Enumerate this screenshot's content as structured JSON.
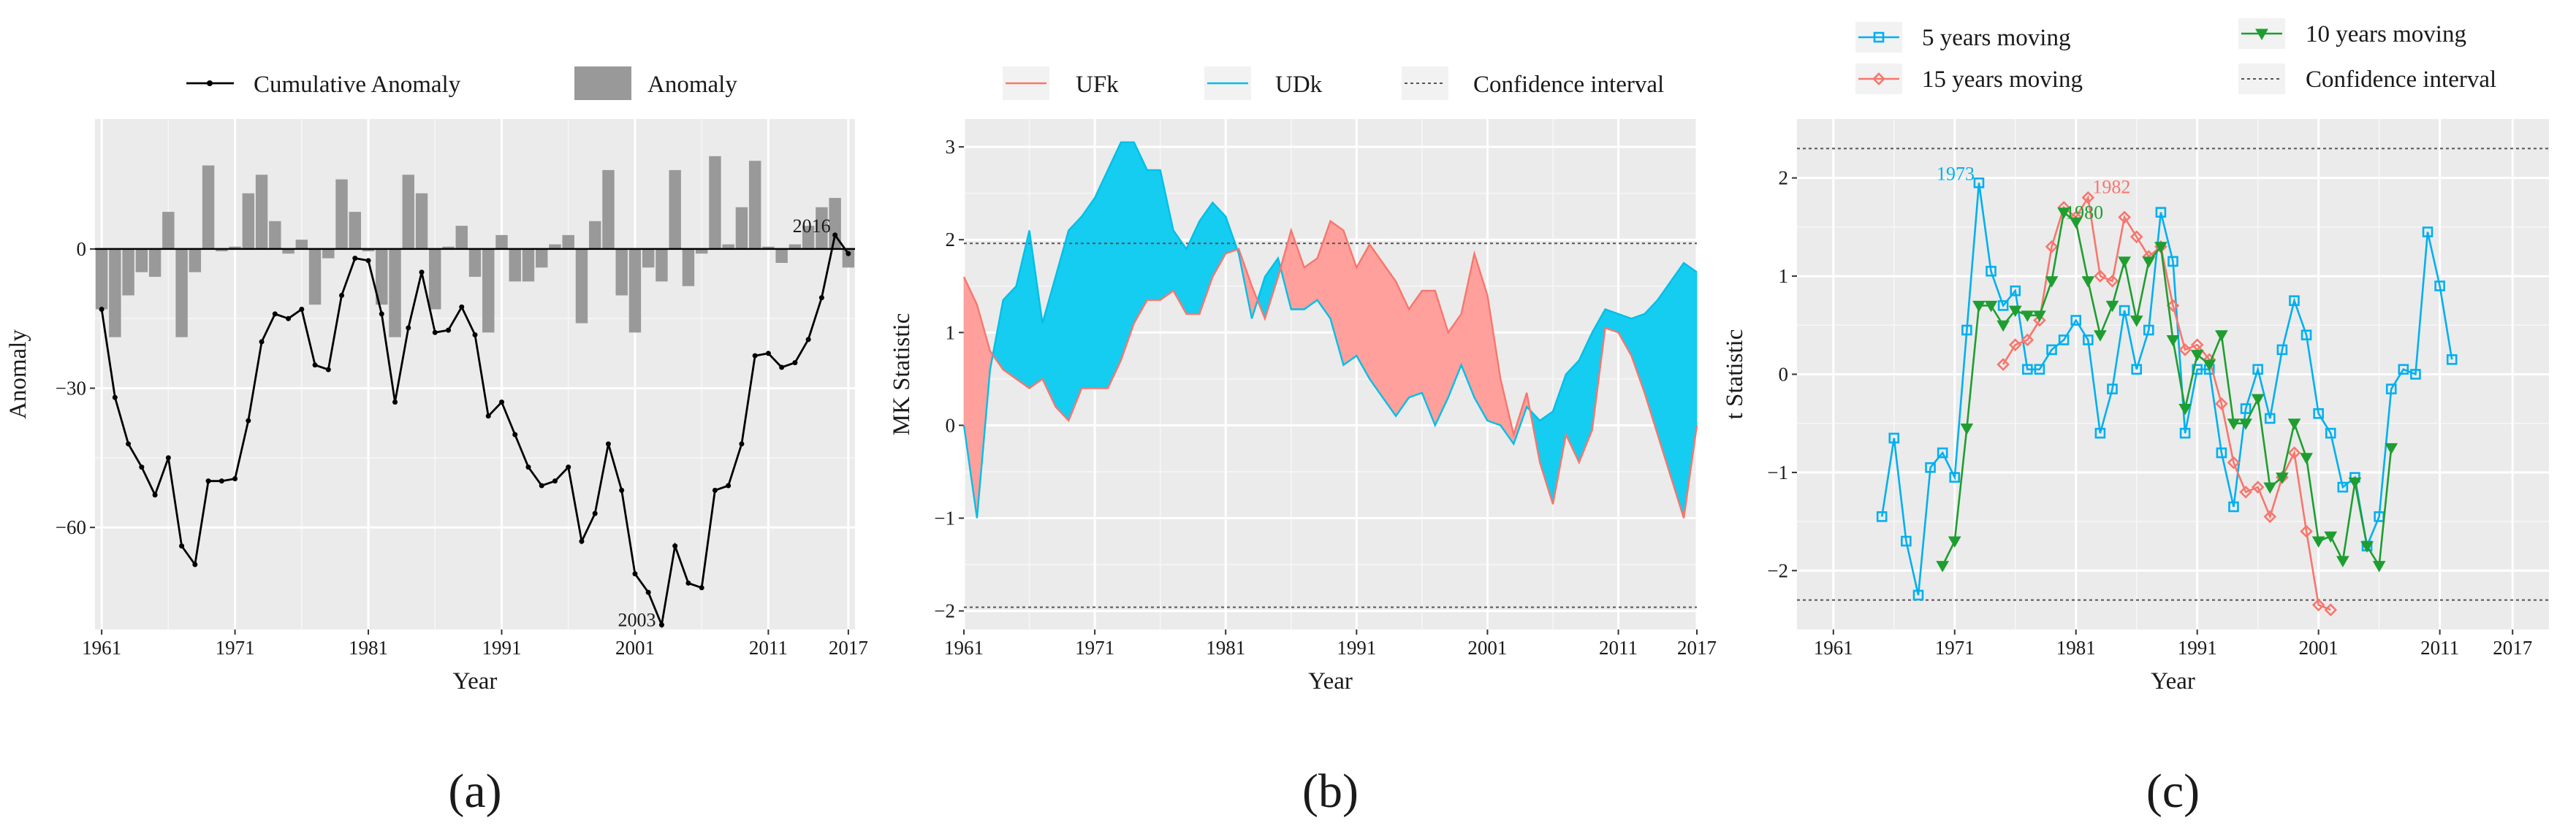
{
  "chart_data": [
    {
      "panel": "a",
      "panel_label": "(a)",
      "type": "bar",
      "xlabel": "Year",
      "ylabel": "Anomaly",
      "xlim": [
        1960.5,
        2017.5
      ],
      "ylim": [
        -82,
        28
      ],
      "x_ticks": [
        1961,
        1971,
        1981,
        1991,
        2001,
        2011,
        2017
      ],
      "x_tick_labels": [
        "1961",
        "1971",
        "1981",
        "1991",
        "2001",
        "2011",
        "2017"
      ],
      "y_ticks": [
        0,
        -30,
        -60
      ],
      "y_tick_labels": [
        "0",
        "−30",
        "−60"
      ],
      "legend": {
        "position": "top",
        "entries": [
          "Cumulative Anomaly",
          "Anomaly"
        ]
      },
      "colors": {
        "bar": "#999999",
        "line": "#000000"
      },
      "x": [
        1961,
        1962,
        1963,
        1964,
        1965,
        1966,
        1967,
        1968,
        1969,
        1970,
        1971,
        1972,
        1973,
        1974,
        1975,
        1976,
        1977,
        1978,
        1979,
        1980,
        1981,
        1982,
        1983,
        1984,
        1985,
        1986,
        1987,
        1988,
        1989,
        1990,
        1991,
        1992,
        1993,
        1994,
        1995,
        1996,
        1997,
        1998,
        1999,
        2000,
        2001,
        2002,
        2003,
        2004,
        2005,
        2006,
        2007,
        2008,
        2009,
        2010,
        2011,
        2012,
        2013,
        2014,
        2015,
        2016,
        2017
      ],
      "series": [
        {
          "name": "Anomaly",
          "type": "bar",
          "values": [
            -13,
            -19,
            -10,
            -5,
            -6,
            8,
            -19,
            -5,
            18,
            -0.5,
            0.5,
            12,
            16,
            6,
            -1,
            2,
            -12,
            -2,
            15,
            8,
            -0.5,
            -12,
            -19,
            16,
            12,
            -13,
            0.5,
            5,
            -6,
            -18,
            3,
            -7,
            -7,
            -4,
            1,
            3,
            -16,
            6,
            17,
            -10,
            -18,
            -4,
            -7,
            17,
            -8,
            -1,
            20,
            1,
            9,
            19,
            0.5,
            -3,
            1,
            5,
            9,
            11,
            -4
          ]
        },
        {
          "name": "Cumulative Anomaly",
          "type": "line",
          "values": [
            -13,
            -32,
            -42,
            -47,
            -53,
            -45,
            -64,
            -68,
            -50,
            -50,
            -49.5,
            -37,
            -20,
            -14,
            -15,
            -13,
            -25,
            -26,
            -10,
            -2,
            -2.5,
            -14,
            -33,
            -17,
            -5,
            -18,
            -17.5,
            -12.5,
            -18.5,
            -36,
            -33,
            -40,
            -47,
            -51,
            -50,
            -47,
            -63,
            -57,
            -42,
            -52,
            -70,
            -74,
            -81,
            -64,
            -72,
            -73,
            -52,
            -51,
            -42,
            -23,
            -22.5,
            -25.5,
            -24.5,
            -19.5,
            -10.5,
            3,
            -1
          ]
        }
      ],
      "annotations": [
        {
          "text": "2016",
          "x": 2016,
          "y": 3
        },
        {
          "text": "2003",
          "x": 2003,
          "y": -81
        }
      ]
    },
    {
      "panel": "b",
      "panel_label": "(b)",
      "type": "area",
      "xlabel": "Year",
      "ylabel": "MK Statistic",
      "xlim": [
        1961,
        2017
      ],
      "ylim": [
        -2.2,
        3.3
      ],
      "x_ticks": [
        1961,
        1971,
        1981,
        1991,
        2001,
        2011,
        2017
      ],
      "x_tick_labels": [
        "1961",
        "1971",
        "1981",
        "1991",
        "2001",
        "2011",
        "2017"
      ],
      "y_ticks": [
        3,
        2,
        1,
        0,
        -1,
        -2
      ],
      "y_tick_labels": [
        "3",
        "2",
        "1",
        "0",
        "−1",
        "−2"
      ],
      "confidence_interval": [
        1.96,
        -1.96
      ],
      "legend": {
        "position": "top",
        "entries": [
          "UFk",
          "UDk",
          "Confidence interval"
        ]
      },
      "colors": {
        "UFk": "#F8766D",
        "UDk": "#00BFE8",
        "fill_UFk": "#FFA09C",
        "fill_UDk": "#15CDF0"
      },
      "x": [
        1961,
        1962,
        1963,
        1964,
        1965,
        1966,
        1967,
        1968,
        1969,
        1970,
        1971,
        1972,
        1973,
        1974,
        1975,
        1976,
        1977,
        1978,
        1979,
        1980,
        1981,
        1982,
        1983,
        1984,
        1985,
        1986,
        1987,
        1988,
        1989,
        1990,
        1991,
        1992,
        1993,
        1994,
        1995,
        1996,
        1997,
        1998,
        1999,
        2000,
        2001,
        2002,
        2003,
        2004,
        2005,
        2006,
        2007,
        2008,
        2009,
        2010,
        2011,
        2012,
        2013,
        2014,
        2015,
        2016,
        2017
      ],
      "series": [
        {
          "name": "UFk",
          "values": [
            1.6,
            1.3,
            0.8,
            0.6,
            0.5,
            0.4,
            0.5,
            0.2,
            0.05,
            0.4,
            0.4,
            0.4,
            0.7,
            1.1,
            1.35,
            1.35,
            1.45,
            1.2,
            1.2,
            1.6,
            1.85,
            1.9,
            1.5,
            1.15,
            1.6,
            2.1,
            1.7,
            1.8,
            2.2,
            2.1,
            1.7,
            1.95,
            1.75,
            1.55,
            1.25,
            1.45,
            1.45,
            1.0,
            1.2,
            1.85,
            1.4,
            0.5,
            -0.1,
            0.35,
            -0.4,
            -0.85,
            -0.1,
            -0.4,
            -0.05,
            1.05,
            1.0,
            0.75,
            0.35,
            -0.1,
            -0.55,
            -1.0,
            0.0
          ]
        },
        {
          "name": "UDk",
          "values": [
            0.0,
            -1.0,
            0.6,
            1.35,
            1.5,
            2.1,
            1.1,
            1.6,
            2.1,
            2.25,
            2.45,
            2.75,
            3.05,
            3.05,
            2.75,
            2.75,
            2.1,
            1.9,
            2.2,
            2.4,
            2.25,
            1.85,
            1.15,
            1.6,
            1.8,
            1.25,
            1.25,
            1.35,
            1.15,
            0.65,
            0.75,
            0.5,
            0.3,
            0.1,
            0.3,
            0.35,
            0.0,
            0.3,
            0.65,
            0.3,
            0.05,
            0.0,
            -0.2,
            0.2,
            0.05,
            0.15,
            0.55,
            0.7,
            1.0,
            1.25,
            1.2,
            1.15,
            1.2,
            1.35,
            1.55,
            1.75,
            1.65
          ]
        }
      ]
    },
    {
      "panel": "c",
      "panel_label": "(c)",
      "type": "line",
      "xlabel": "Year",
      "ylabel": "t Statistic",
      "xlim": [
        1958,
        2020
      ],
      "ylim": [
        -2.6,
        2.6
      ],
      "x_ticks": [
        1961,
        1971,
        1981,
        1991,
        2001,
        2011,
        2017
      ],
      "x_tick_labels": [
        "1961",
        "1971",
        "1981",
        "1991",
        "2001",
        "2011",
        "2017"
      ],
      "y_ticks": [
        2,
        1,
        0,
        -1,
        -2
      ],
      "y_tick_labels": [
        "2",
        "1",
        "0",
        "−1",
        "−2"
      ],
      "confidence_interval": [
        2.3,
        -2.3
      ],
      "legend": {
        "position": "top",
        "entries": [
          "5 years moving",
          "10 years moving",
          "15 years moving",
          "Confidence interval"
        ]
      },
      "colors": {
        "5 years moving": "#00B0F0",
        "10 years moving": "#1E9E30",
        "15 years moving": "#F8766D"
      },
      "series": [
        {
          "name": "5 years moving",
          "marker": "square",
          "x": [
            1965,
            1966,
            1967,
            1968,
            1969,
            1970,
            1971,
            1972,
            1973,
            1974,
            1975,
            1976,
            1977,
            1978,
            1979,
            1980,
            1981,
            1982,
            1983,
            1984,
            1985,
            1986,
            1987,
            1988,
            1989,
            1990,
            1991,
            1992,
            1993,
            1994,
            1995,
            1996,
            1997,
            1998,
            1999,
            2000,
            2001,
            2002,
            2003,
            2004,
            2005,
            2006,
            2007,
            2008,
            2009,
            2010,
            2011,
            2012
          ],
          "values": [
            -1.45,
            -0.65,
            -1.7,
            -2.25,
            -0.95,
            -0.8,
            -1.05,
            0.45,
            1.95,
            1.05,
            0.7,
            0.85,
            0.05,
            0.05,
            0.25,
            0.35,
            0.55,
            0.35,
            -0.6,
            -0.15,
            0.65,
            0.05,
            0.45,
            1.65,
            1.15,
            -0.6,
            0.05,
            0.05,
            -0.8,
            -1.35,
            -0.35,
            0.05,
            -0.45,
            0.25,
            0.75,
            0.4,
            -0.4,
            -0.6,
            -1.15,
            -1.05,
            -1.75,
            -1.45,
            -0.15,
            0.05,
            0.0,
            1.45,
            0.9,
            0.15
          ]
        },
        {
          "name": "10 years moving",
          "marker": "triangle-down",
          "x": [
            1970,
            1971,
            1972,
            1973,
            1974,
            1975,
            1976,
            1977,
            1978,
            1979,
            1980,
            1981,
            1982,
            1983,
            1984,
            1985,
            1986,
            1987,
            1988,
            1989,
            1990,
            1991,
            1992,
            1993,
            1994,
            1995,
            1996,
            1997,
            1998,
            1999,
            2000,
            2001,
            2002,
            2003,
            2004,
            2005,
            2006,
            2007
          ],
          "values": [
            -1.95,
            -1.7,
            -0.55,
            0.7,
            0.7,
            0.5,
            0.65,
            0.6,
            0.6,
            0.95,
            1.65,
            1.55,
            0.95,
            0.4,
            0.7,
            1.15,
            0.55,
            1.15,
            1.3,
            0.35,
            -0.35,
            0.2,
            0.1,
            0.4,
            -0.5,
            -0.5,
            -0.25,
            -1.15,
            -1.05,
            -0.5,
            -0.85,
            -1.7,
            -1.65,
            -1.9,
            -1.1,
            -1.75,
            -1.95,
            -0.75
          ]
        },
        {
          "name": "15 years moving",
          "marker": "diamond",
          "x": [
            1975,
            1976,
            1977,
            1978,
            1979,
            1980,
            1981,
            1982,
            1983,
            1984,
            1985,
            1986,
            1987,
            1988,
            1989,
            1990,
            1991,
            1992,
            1993,
            1994,
            1995,
            1996,
            1997,
            1998,
            1999,
            2000,
            2001,
            2002
          ],
          "values": [
            0.1,
            0.3,
            0.35,
            0.55,
            1.3,
            1.7,
            1.6,
            1.8,
            1.0,
            0.95,
            1.6,
            1.4,
            1.2,
            1.3,
            0.7,
            0.25,
            0.3,
            0.15,
            -0.3,
            -0.9,
            -1.2,
            -1.15,
            -1.45,
            -1.05,
            -0.8,
            -1.6,
            -2.35,
            -2.4
          ]
        }
      ],
      "annotations": [
        {
          "text": "1973",
          "x": 1973,
          "y": 1.95,
          "series": "5 years moving"
        },
        {
          "text": "1982",
          "x": 1982,
          "y": 1.8,
          "series": "15 years moving"
        },
        {
          "text": "1980",
          "x": 1980,
          "y": 1.65,
          "series": "10 years moving"
        }
      ]
    }
  ]
}
